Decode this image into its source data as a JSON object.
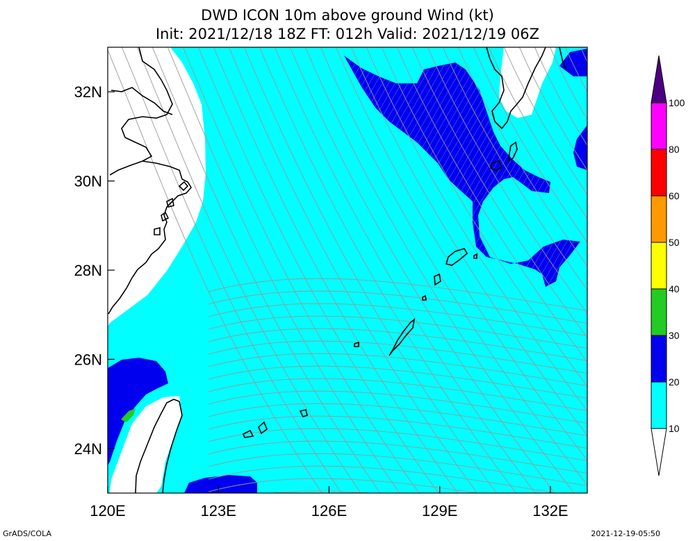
{
  "title": {
    "line1": "DWD ICON 10m above ground Wind (kt)",
    "line2": "Init: 2021/12/18 18Z  FT: 012h  Valid: 2021/12/19 06Z"
  },
  "map": {
    "lon_range": [
      120,
      133
    ],
    "lat_range": [
      23,
      33
    ],
    "lon_ticks": [
      {
        "v": 120,
        "label": "120E"
      },
      {
        "v": 123,
        "label": "123E"
      },
      {
        "v": 126,
        "label": "126E"
      },
      {
        "v": 129,
        "label": "129E"
      },
      {
        "v": 132,
        "label": "132E"
      }
    ],
    "lat_ticks": [
      {
        "v": 24,
        "label": "24N"
      },
      {
        "v": 26,
        "label": "26N"
      },
      {
        "v": 28,
        "label": "28N"
      },
      {
        "v": 30,
        "label": "30N"
      },
      {
        "v": 32,
        "label": "32N"
      }
    ]
  },
  "colorbar": {
    "levels": [
      {
        "label": "10",
        "color": "#ffffff"
      },
      {
        "label": "20",
        "color": "#00ffff"
      },
      {
        "label": "30",
        "color": "#0000ee"
      },
      {
        "label": "40",
        "color": "#22cc22"
      },
      {
        "label": "50",
        "color": "#ffff00"
      },
      {
        "label": "60",
        "color": "#ff9900"
      },
      {
        "label": "80",
        "color": "#ff0000"
      },
      {
        "label": "100",
        "color": "#ff00ff"
      }
    ],
    "top_color": "#4b0082"
  },
  "colors": {
    "cyan": "#00ffff",
    "blue": "#0000ee",
    "green": "#22cc22",
    "land_white": "#ffffff",
    "streamline": "#999999"
  },
  "footer": {
    "left": "GrADS/COLA",
    "right": "2021-12-19-05:50"
  }
}
